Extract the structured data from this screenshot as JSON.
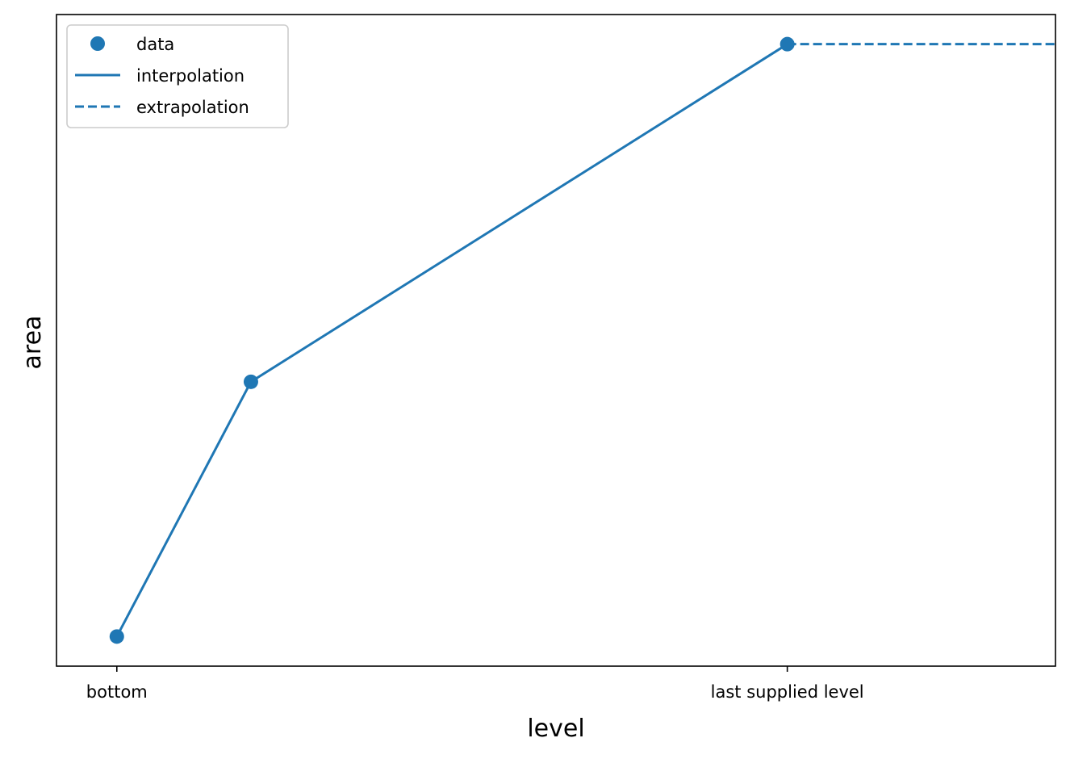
{
  "chart_data": {
    "type": "line",
    "title": "",
    "xlabel": "level",
    "ylabel": "area",
    "x_ticks": [
      {
        "x": 0,
        "label": "bottom"
      },
      {
        "x": 1,
        "label": "last supplied level"
      }
    ],
    "y_ticks": [],
    "xlim": [
      -0.09,
      1.4
    ],
    "ylim": [
      -0.05,
      1.05
    ],
    "grid": false,
    "legend": {
      "placement": "top-left",
      "entries": [
        {
          "key": "data",
          "label": "data",
          "style": "marker"
        },
        {
          "key": "interpolation",
          "label": "interpolation",
          "style": "solid"
        },
        {
          "key": "extrapolation",
          "label": "extrapolation",
          "style": "dashed"
        }
      ]
    },
    "series": [
      {
        "name": "data",
        "kind": "scatter",
        "x": [
          0,
          0.2,
          1
        ],
        "y": [
          0,
          0.43,
          1
        ]
      },
      {
        "name": "interpolation",
        "kind": "line-solid",
        "x": [
          0,
          0.2,
          1
        ],
        "y": [
          0,
          0.43,
          1
        ]
      },
      {
        "name": "extrapolation",
        "kind": "line-dashed",
        "x": [
          1,
          1.4
        ],
        "y": [
          1,
          1
        ]
      }
    ],
    "colors": {
      "series": "#1f77b4"
    }
  }
}
